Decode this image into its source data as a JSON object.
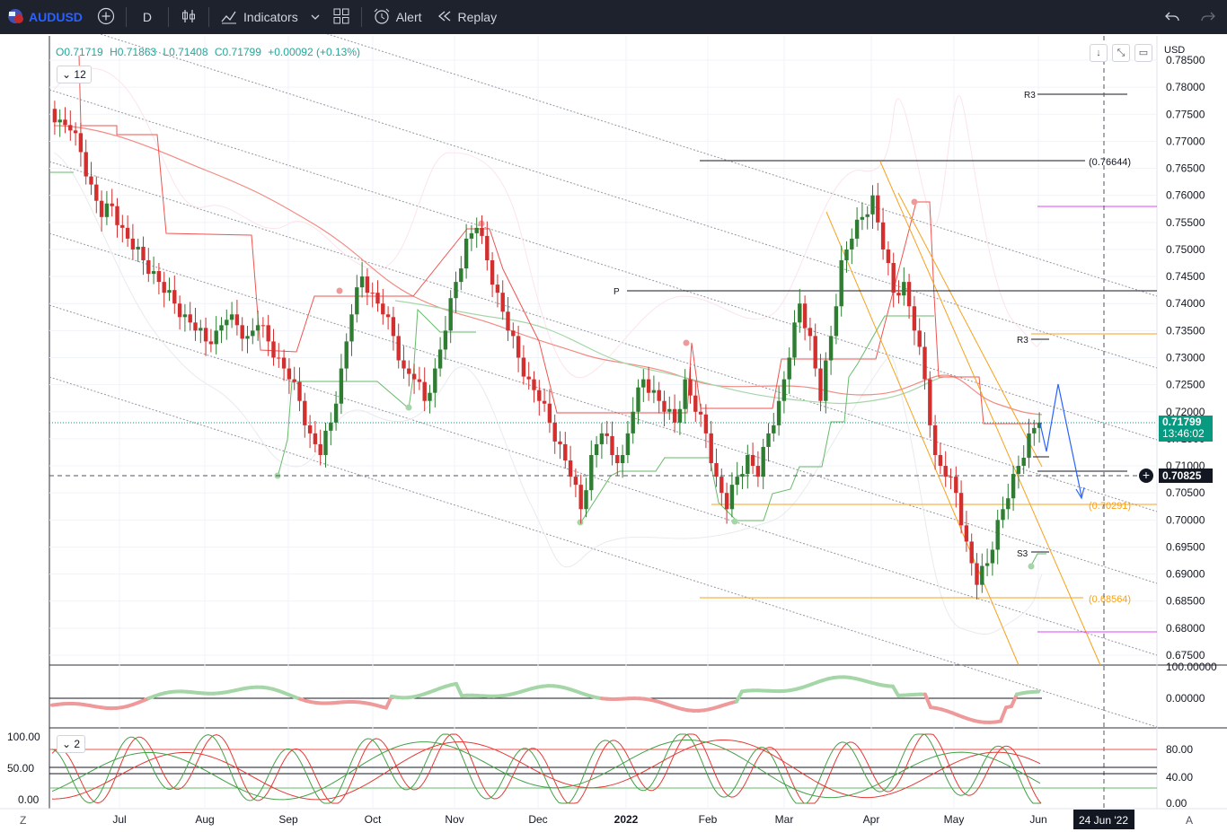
{
  "toolbar": {
    "symbol": "AUDUSD",
    "interval": "D",
    "indicators_label": "Indicators",
    "alert_label": "Alert",
    "replay_label": "Replay"
  },
  "legend": {
    "open": "O0.71719",
    "high": "H0.71863",
    "low": "L0.71408",
    "close": "C0.71799",
    "change": "+0.00092 (+0.13%)",
    "study_count": "12"
  },
  "oscillator": {
    "study_count": "2"
  },
  "price_scale": {
    "currency": "USD",
    "ticks": [
      "0.78500",
      "0.78000",
      "0.77500",
      "0.77000",
      "0.76500",
      "0.76000",
      "0.75500",
      "0.75000",
      "0.74500",
      "0.74000",
      "0.73500",
      "0.73000",
      "0.72500",
      "0.72000",
      "0.71500",
      "0.71000",
      "0.70500",
      "0.70000",
      "0.69500",
      "0.69000",
      "0.68500",
      "0.68000",
      "0.67500"
    ],
    "last_price": "0.71799",
    "countdown": "13:46:02",
    "crosshair_price": "0.70825"
  },
  "pane2_scale": {
    "ticks": [
      "100.00000",
      "0.00000"
    ]
  },
  "pane3_scale": {
    "left_ticks": [
      "100.00",
      "50.00",
      "0.00"
    ],
    "right_ticks": [
      "80.00",
      "40.00",
      "0.00"
    ]
  },
  "time_axis": {
    "labels": [
      "Jul",
      "Aug",
      "Sep",
      "Oct",
      "Nov",
      "Dec",
      "2022",
      "Feb",
      "Mar",
      "Apr",
      "May",
      "Jun"
    ],
    "crosshair_date": "24 Jun '22",
    "left_button": "Z",
    "right_button": "A"
  },
  "annotations": {
    "high_level": "(0.76644)",
    "fib_1": "(0.70291)",
    "fib_2": "(0.68564)",
    "r3_top": "R3",
    "pivot": "P",
    "r3_mid": "R3",
    "s3": "S3"
  },
  "colors": {
    "up": "#089981",
    "up_candle": "#2e7d32",
    "down": "#f23645",
    "down_candle": "#d32f2f",
    "accent": "#2962ff",
    "fib": "#f7a21b",
    "magenta": "#e040fb",
    "topbar": "#1e222d"
  },
  "chart_data": {
    "type": "candlestick",
    "symbol": "AUDUSD",
    "interval": "D",
    "x": [
      "Jul",
      "Aug",
      "Sep",
      "Oct",
      "Nov",
      "Dec",
      "2022",
      "Feb",
      "Mar",
      "Apr",
      "May",
      "Jun"
    ],
    "ylim": [
      0.675,
      0.785
    ],
    "last": {
      "open": 0.71719,
      "high": 0.71863,
      "low": 0.71408,
      "close": 0.71799
    },
    "closes": [
      0.774,
      0.772,
      0.768,
      0.762,
      0.756,
      0.758,
      0.754,
      0.75,
      0.748,
      0.746,
      0.742,
      0.74,
      0.738,
      0.735,
      0.733,
      0.735,
      0.737,
      0.736,
      0.734,
      0.736,
      0.733,
      0.73,
      0.726,
      0.722,
      0.716,
      0.712,
      0.718,
      0.728,
      0.738,
      0.745,
      0.742,
      0.738,
      0.734,
      0.728,
      0.726,
      0.722,
      0.728,
      0.735,
      0.744,
      0.752,
      0.754,
      0.748,
      0.742,
      0.735,
      0.73,
      0.726,
      0.722,
      0.718,
      0.714,
      0.708,
      0.702,
      0.712,
      0.716,
      0.712,
      0.712,
      0.72,
      0.726,
      0.724,
      0.72,
      0.718,
      0.726,
      0.72,
      0.716,
      0.708,
      0.702,
      0.708,
      0.712,
      0.708,
      0.716,
      0.722,
      0.73,
      0.74,
      0.734,
      0.722,
      0.734,
      0.748,
      0.752,
      0.756,
      0.76,
      0.75,
      0.742,
      0.744,
      0.735,
      0.726,
      0.712,
      0.708,
      0.705,
      0.696,
      0.688,
      0.692,
      0.7,
      0.704,
      0.71,
      0.716,
      0.718
    ],
    "levels": {
      "swing_high": 0.76644,
      "fib_1": 0.70291,
      "fib_2": 0.68564,
      "crosshair": 0.70825
    }
  }
}
